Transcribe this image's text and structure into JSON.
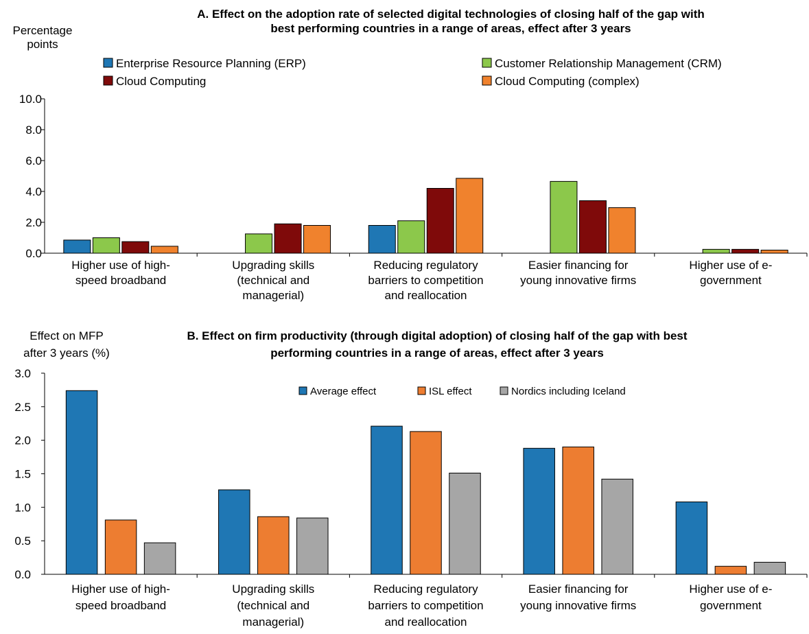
{
  "chart_data": [
    {
      "type": "bar",
      "title_lines": [
        "A. Effect on the adoption rate of selected digital technologies of closing half of the gap with",
        "best performing countries in a range of areas, effect after 3 years"
      ],
      "ylabel_lines": [
        "Percentage",
        "points"
      ],
      "ylim": [
        0,
        10
      ],
      "yticks": [
        "0.0",
        "2.0",
        "4.0",
        "6.0",
        "8.0",
        "10.0"
      ],
      "grid": false,
      "legend_position": "top",
      "categories": [
        [
          "Higher use of high-",
          "speed broadband"
        ],
        [
          "Upgrading skills",
          "(technical and",
          "managerial)"
        ],
        [
          "Reducing regulatory",
          "barriers to competition",
          "and reallocation"
        ],
        [
          "Easier financing for",
          "young innovative firms"
        ],
        [
          "Higher use of e-",
          "government"
        ]
      ],
      "series": [
        {
          "name": "Enterprise Resource Planning (ERP)",
          "color": "#1f77b4",
          "values": [
            0.85,
            0,
            1.8,
            0,
            0
          ]
        },
        {
          "name": "Customer Relationship Management (CRM)",
          "color": "#8cc84b",
          "values": [
            1.0,
            1.25,
            2.1,
            4.65,
            0.25
          ]
        },
        {
          "name": "Cloud Computing",
          "color": "#7f0a0a",
          "values": [
            0.75,
            1.9,
            4.2,
            3.4,
            0.25
          ]
        },
        {
          "name": "Cloud Computing (complex)",
          "color": "#f0822d",
          "values": [
            0.45,
            1.8,
            4.85,
            2.95,
            0.2
          ]
        }
      ]
    },
    {
      "type": "bar",
      "title_lines": [
        "B. Effect on firm productivity (through digital adoption) of closing half of the gap with best",
        "performing countries in a range of areas, effect after 3 years"
      ],
      "ylabel_lines": [
        "Effect on MFP",
        "after 3 years (%)"
      ],
      "ylim": [
        0,
        3
      ],
      "yticks": [
        "0.0",
        "0.5",
        "1.0",
        "1.5",
        "2.0",
        "2.5",
        "3.0"
      ],
      "grid": false,
      "legend_position": "top",
      "categories": [
        [
          "Higher use of high-",
          "speed broadband"
        ],
        [
          "Upgrading skills",
          "(technical and",
          "managerial)"
        ],
        [
          "Reducing regulatory",
          "barriers to competition",
          "and reallocation"
        ],
        [
          "Easier financing for",
          "young innovative firms"
        ],
        [
          "Higher use of e-",
          "government"
        ]
      ],
      "series": [
        {
          "name": "Average effect",
          "color": "#1f77b4",
          "values": [
            2.74,
            1.26,
            2.21,
            1.88,
            1.08
          ]
        },
        {
          "name": "ISL effect",
          "color": "#ed7d31",
          "values": [
            0.81,
            0.86,
            2.13,
            1.9,
            0.12
          ]
        },
        {
          "name": "Nordics including Iceland",
          "color": "#a6a6a6",
          "values": [
            0.47,
            0.84,
            1.51,
            1.42,
            0.18
          ]
        }
      ]
    }
  ]
}
